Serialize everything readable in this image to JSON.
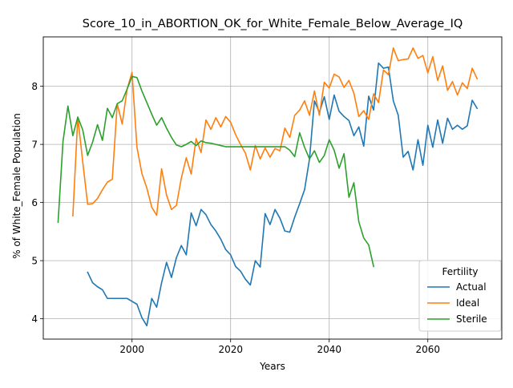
{
  "chart_data": {
    "type": "line",
    "title": "Score_10_in_ABORTION_OK_for_White_Female_Below_Average_IQ",
    "xlabel": "Years",
    "ylabel": "% of White_Female Population",
    "xlim": [
      1982,
      2075
    ],
    "ylim": [
      3.65,
      8.85
    ],
    "xticks": [
      2000,
      2020,
      2040,
      2060
    ],
    "yticks": [
      4,
      5,
      6,
      7,
      8
    ],
    "grid": true,
    "legend": {
      "title": "Fertility",
      "placement": "lower right"
    },
    "series": [
      {
        "name": "Actual",
        "color": "#1f77b4",
        "points": [
          [
            1991,
            4.8
          ],
          [
            1992,
            4.62
          ],
          [
            1993,
            4.55
          ],
          [
            1994,
            4.5
          ],
          [
            1995,
            4.35
          ],
          [
            1996,
            4.35
          ],
          [
            1997,
            4.35
          ],
          [
            1998,
            4.35
          ],
          [
            1999,
            4.35
          ],
          [
            2000,
            4.3
          ],
          [
            2001,
            4.25
          ],
          [
            2002,
            4.02
          ],
          [
            2003,
            3.88
          ],
          [
            2004,
            4.35
          ],
          [
            2005,
            4.2
          ],
          [
            2006,
            4.62
          ],
          [
            2007,
            4.97
          ],
          [
            2008,
            4.71
          ],
          [
            2009,
            5.05
          ],
          [
            2010,
            5.26
          ],
          [
            2011,
            5.1
          ],
          [
            2012,
            5.82
          ],
          [
            2013,
            5.6
          ],
          [
            2014,
            5.88
          ],
          [
            2015,
            5.79
          ],
          [
            2016,
            5.62
          ],
          [
            2017,
            5.51
          ],
          [
            2018,
            5.37
          ],
          [
            2019,
            5.19
          ],
          [
            2020,
            5.1
          ],
          [
            2021,
            4.9
          ],
          [
            2022,
            4.82
          ],
          [
            2023,
            4.68
          ],
          [
            2024,
            4.58
          ],
          [
            2025,
            5.0
          ],
          [
            2026,
            4.89
          ],
          [
            2027,
            5.81
          ],
          [
            2028,
            5.62
          ],
          [
            2029,
            5.88
          ],
          [
            2030,
            5.73
          ],
          [
            2031,
            5.51
          ],
          [
            2032,
            5.49
          ],
          [
            2033,
            5.75
          ],
          [
            2034,
            5.98
          ],
          [
            2035,
            6.22
          ],
          [
            2036,
            6.75
          ],
          [
            2037,
            7.75
          ],
          [
            2038,
            7.55
          ],
          [
            2039,
            7.82
          ],
          [
            2040,
            7.43
          ],
          [
            2041,
            7.85
          ],
          [
            2042,
            7.57
          ],
          [
            2043,
            7.48
          ],
          [
            2044,
            7.41
          ],
          [
            2045,
            7.15
          ],
          [
            2046,
            7.3
          ],
          [
            2047,
            6.97
          ],
          [
            2048,
            7.83
          ],
          [
            2049,
            7.59
          ],
          [
            2050,
            8.4
          ],
          [
            2051,
            8.31
          ],
          [
            2052,
            8.33
          ],
          [
            2053,
            7.75
          ],
          [
            2054,
            7.5
          ],
          [
            2055,
            6.78
          ],
          [
            2056,
            6.88
          ],
          [
            2057,
            6.56
          ],
          [
            2058,
            7.08
          ],
          [
            2059,
            6.64
          ],
          [
            2060,
            7.33
          ],
          [
            2061,
            6.95
          ],
          [
            2062,
            7.42
          ],
          [
            2063,
            7.02
          ],
          [
            2064,
            7.45
          ],
          [
            2065,
            7.26
          ],
          [
            2066,
            7.33
          ],
          [
            2067,
            7.26
          ],
          [
            2068,
            7.32
          ],
          [
            2069,
            7.76
          ],
          [
            2070,
            7.62
          ]
        ]
      },
      {
        "name": "Ideal",
        "color": "#ff7f0e",
        "points": [
          [
            1988,
            5.77
          ],
          [
            1989,
            7.47
          ],
          [
            1990,
            6.7
          ],
          [
            1991,
            5.97
          ],
          [
            1992,
            5.98
          ],
          [
            1993,
            6.07
          ],
          [
            1994,
            6.22
          ],
          [
            1995,
            6.35
          ],
          [
            1996,
            6.4
          ],
          [
            1997,
            7.7
          ],
          [
            1998,
            7.35
          ],
          [
            1999,
            7.95
          ],
          [
            2000,
            8.24
          ],
          [
            2001,
            6.95
          ],
          [
            2002,
            6.5
          ],
          [
            2003,
            6.25
          ],
          [
            2004,
            5.92
          ],
          [
            2005,
            5.78
          ],
          [
            2006,
            6.58
          ],
          [
            2007,
            6.13
          ],
          [
            2008,
            5.88
          ],
          [
            2009,
            5.95
          ],
          [
            2010,
            6.42
          ],
          [
            2011,
            6.77
          ],
          [
            2012,
            6.49
          ],
          [
            2013,
            7.1
          ],
          [
            2014,
            6.86
          ],
          [
            2015,
            7.42
          ],
          [
            2016,
            7.26
          ],
          [
            2017,
            7.46
          ],
          [
            2018,
            7.3
          ],
          [
            2019,
            7.48
          ],
          [
            2020,
            7.38
          ],
          [
            2021,
            7.17
          ],
          [
            2022,
            7.0
          ],
          [
            2023,
            6.85
          ],
          [
            2024,
            6.56
          ],
          [
            2025,
            6.98
          ],
          [
            2026,
            6.75
          ],
          [
            2027,
            6.94
          ],
          [
            2028,
            6.78
          ],
          [
            2029,
            6.93
          ],
          [
            2030,
            6.89
          ],
          [
            2031,
            7.28
          ],
          [
            2032,
            7.12
          ],
          [
            2033,
            7.5
          ],
          [
            2034,
            7.59
          ],
          [
            2035,
            7.75
          ],
          [
            2036,
            7.5
          ],
          [
            2037,
            7.92
          ],
          [
            2038,
            7.5
          ],
          [
            2039,
            8.07
          ],
          [
            2040,
            7.97
          ],
          [
            2041,
            8.21
          ],
          [
            2042,
            8.16
          ],
          [
            2043,
            7.98
          ],
          [
            2044,
            8.1
          ],
          [
            2045,
            7.88
          ],
          [
            2046,
            7.48
          ],
          [
            2047,
            7.58
          ],
          [
            2048,
            7.43
          ],
          [
            2049,
            7.87
          ],
          [
            2050,
            7.72
          ],
          [
            2051,
            8.28
          ],
          [
            2052,
            8.2
          ],
          [
            2053,
            8.66
          ],
          [
            2054,
            8.44
          ],
          [
            2055,
            8.46
          ],
          [
            2056,
            8.47
          ],
          [
            2057,
            8.66
          ],
          [
            2058,
            8.48
          ],
          [
            2059,
            8.53
          ],
          [
            2060,
            8.23
          ],
          [
            2061,
            8.51
          ],
          [
            2062,
            8.1
          ],
          [
            2063,
            8.35
          ],
          [
            2064,
            7.93
          ],
          [
            2065,
            8.08
          ],
          [
            2066,
            7.85
          ],
          [
            2067,
            8.06
          ],
          [
            2068,
            7.96
          ],
          [
            2069,
            8.31
          ],
          [
            2070,
            8.13
          ]
        ]
      },
      {
        "name": "Sterile",
        "color": "#2ca02c",
        "points": [
          [
            1985,
            5.66
          ],
          [
            1986,
            7.05
          ],
          [
            1987,
            7.66
          ],
          [
            1988,
            7.15
          ],
          [
            1989,
            7.47
          ],
          [
            1990,
            7.25
          ],
          [
            1991,
            6.81
          ],
          [
            1992,
            7.04
          ],
          [
            1993,
            7.34
          ],
          [
            1994,
            7.07
          ],
          [
            1995,
            7.62
          ],
          [
            1996,
            7.46
          ],
          [
            1997,
            7.7
          ],
          [
            1998,
            7.75
          ],
          [
            1999,
            7.95
          ],
          [
            2000,
            8.17
          ],
          [
            2001,
            8.15
          ],
          [
            2002,
            7.92
          ],
          [
            2003,
            7.72
          ],
          [
            2004,
            7.52
          ],
          [
            2005,
            7.33
          ],
          [
            2006,
            7.46
          ],
          [
            2007,
            7.28
          ],
          [
            2008,
            7.12
          ],
          [
            2009,
            6.99
          ],
          [
            2010,
            6.96
          ],
          [
            2011,
            7.0
          ],
          [
            2012,
            7.05
          ],
          [
            2013,
            6.98
          ],
          [
            2014,
            7.06
          ],
          [
            2015,
            7.03
          ],
          [
            2016,
            7.02
          ],
          [
            2017,
            7.0
          ],
          [
            2018,
            6.98
          ],
          [
            2019,
            6.96
          ],
          [
            2020,
            6.96
          ],
          [
            2021,
            6.96
          ],
          [
            2022,
            6.96
          ],
          [
            2023,
            6.96
          ],
          [
            2024,
            6.96
          ],
          [
            2025,
            6.96
          ],
          [
            2026,
            6.96
          ],
          [
            2027,
            6.96
          ],
          [
            2028,
            6.96
          ],
          [
            2029,
            6.96
          ],
          [
            2030,
            6.96
          ],
          [
            2031,
            6.96
          ],
          [
            2032,
            6.9
          ],
          [
            2033,
            6.79
          ],
          [
            2034,
            7.2
          ],
          [
            2035,
            6.95
          ],
          [
            2036,
            6.75
          ],
          [
            2037,
            6.89
          ],
          [
            2038,
            6.69
          ],
          [
            2039,
            6.81
          ],
          [
            2040,
            7.08
          ],
          [
            2041,
            6.9
          ],
          [
            2042,
            6.59
          ],
          [
            2043,
            6.84
          ],
          [
            2044,
            6.09
          ],
          [
            2045,
            6.34
          ],
          [
            2046,
            5.67
          ],
          [
            2047,
            5.39
          ],
          [
            2048,
            5.27
          ],
          [
            2049,
            4.9
          ]
        ]
      }
    ]
  }
}
